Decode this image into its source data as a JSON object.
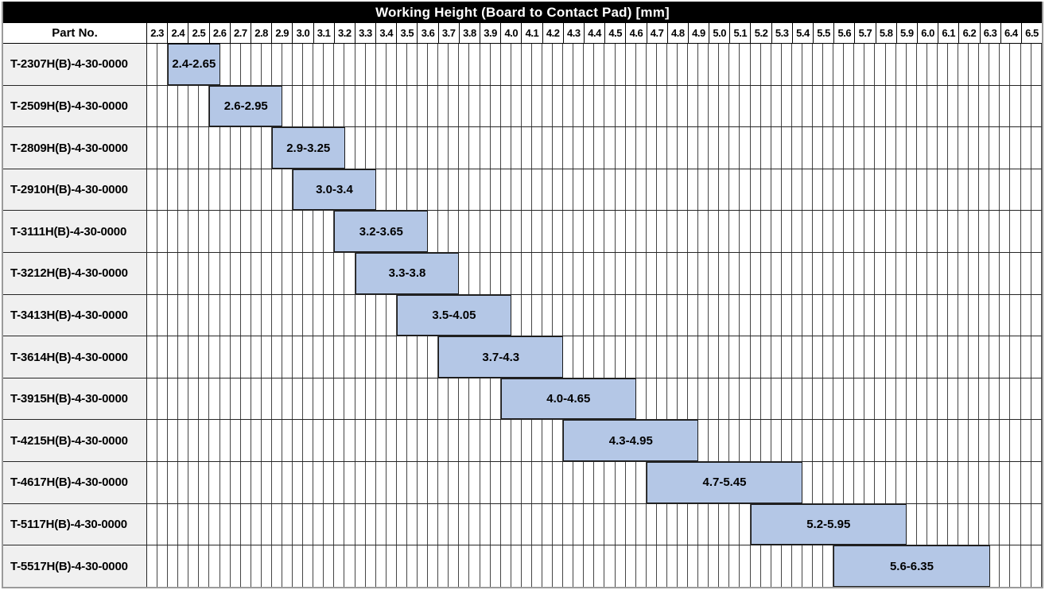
{
  "header": {
    "part_no_label": "Part No."
  },
  "colors": {
    "title_bg": "#000000",
    "title_text": "#ffffff",
    "bar_fill": "#b4c7e6",
    "bar_border": "#1a1a1a",
    "part_cell_bg": "#f0f0f0",
    "grid_line": "#454545",
    "header_line": "#000000",
    "row_line": "#262626",
    "outer_border": "#9b9b9b"
  },
  "chart_data": {
    "type": "bar",
    "subtype": "horizontal-floating-range",
    "title": "Working Height (Board to Contact Pad) [mm]",
    "categories": [
      "T-2307H(B)-4-30-0000",
      "T-2509H(B)-4-30-0000",
      "T-2809H(B)-4-30-0000",
      "T-2910H(B)-4-30-0000",
      "T-3111H(B)-4-30-0000",
      "T-3212H(B)-4-30-0000",
      "T-3413H(B)-4-30-0000",
      "T-3614H(B)-4-30-0000",
      "T-3915H(B)-4-30-0000",
      "T-4215H(B)-4-30-0000",
      "T-4617H(B)-4-30-0000",
      "T-5117H(B)-4-30-0000",
      "T-5517H(B)-4-30-0000"
    ],
    "ranges": [
      [
        2.4,
        2.65
      ],
      [
        2.6,
        2.95
      ],
      [
        2.9,
        3.25
      ],
      [
        3.0,
        3.4
      ],
      [
        3.2,
        3.65
      ],
      [
        3.3,
        3.8
      ],
      [
        3.5,
        4.05
      ],
      [
        3.7,
        4.3
      ],
      [
        4.0,
        4.65
      ],
      [
        4.3,
        4.95
      ],
      [
        4.7,
        5.45
      ],
      [
        5.2,
        5.95
      ],
      [
        5.6,
        6.35
      ]
    ],
    "bar_labels": [
      "2.4-2.65",
      "2.6-2.95",
      "2.9-3.25",
      "3.0-3.4",
      "3.2-3.65",
      "3.3-3.8",
      "3.5-4.05",
      "3.7-4.3",
      "4.0-4.65",
      "4.3-4.95",
      "4.7-5.45",
      "5.2-5.95",
      "5.6-6.35"
    ],
    "x_axis": {
      "min": 2.3,
      "max": 6.6,
      "major_tick_step": 0.1,
      "minor_grid_step": 0.05,
      "tick_labels": [
        "2.3",
        "2.4",
        "2.5",
        "2.6",
        "2.7",
        "2.8",
        "2.9",
        "3.0",
        "3.1",
        "3.2",
        "3.3",
        "3.4",
        "3.5",
        "3.6",
        "3.7",
        "3.8",
        "3.9",
        "4.0",
        "4.1",
        "4.2",
        "4.3",
        "4.4",
        "4.5",
        "4.6",
        "4.7",
        "4.8",
        "4.9",
        "5.0",
        "5.1",
        "5.2",
        "5.3",
        "5.4",
        "5.5",
        "5.6",
        "5.7",
        "5.8",
        "5.9",
        "6.0",
        "6.1",
        "6.2",
        "6.3",
        "6.4",
        "6.5"
      ]
    },
    "grid": true,
    "legend": false
  }
}
